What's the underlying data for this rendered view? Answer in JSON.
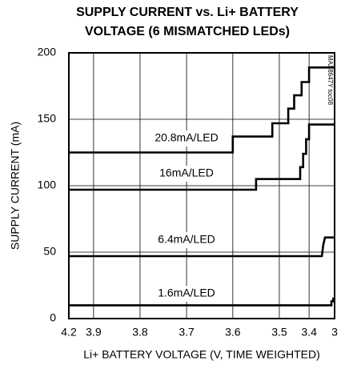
{
  "chart_data": {
    "type": "line",
    "title": [
      "SUPPLY CURRENT vs. Li+ BATTERY",
      "VOLTAGE (6 MISMATCHED LEDs)"
    ],
    "xlabel": "Li+ BATTERY VOLTAGE (V, TIME WEIGHTED)",
    "ylabel": "SUPPLY CURRENT (mA)",
    "xlim": [
      4.2,
      3.0
    ],
    "xticks": [
      4.2,
      3.9,
      3.8,
      3.7,
      3.6,
      3.5,
      3.4,
      3.0
    ],
    "ylim": [
      0,
      200
    ],
    "yticks": [
      0,
      50,
      100,
      150,
      200
    ],
    "grid": true,
    "watermark": "MAX8647Y toc08",
    "series": [
      {
        "name": "20.8mA/LED",
        "color": "#000000",
        "x": [
          4.2,
          3.6,
          3.6,
          3.515,
          3.515,
          3.47,
          3.47,
          3.45,
          3.45,
          3.425,
          3.425,
          3.4,
          3.4,
          3.0
        ],
        "values": [
          125,
          125,
          137,
          137,
          147,
          147,
          158,
          158,
          168,
          168,
          178,
          178,
          189,
          189
        ]
      },
      {
        "name": "16mA/LED",
        "color": "#000000",
        "x": [
          4.2,
          3.55,
          3.55,
          3.43,
          3.43,
          3.42,
          3.42,
          3.41,
          3.41,
          3.4,
          3.4,
          3.0
        ],
        "values": [
          97,
          97,
          105,
          105,
          114,
          114,
          124,
          124,
          135,
          135,
          146,
          146
        ]
      },
      {
        "name": "6.4mA/LED",
        "color": "#000000",
        "x": [
          4.2,
          3.2,
          3.18,
          3.18,
          3.15,
          3.15,
          3.0
        ],
        "values": [
          47,
          47,
          55,
          55,
          61,
          61,
          61
        ]
      },
      {
        "name": "1.6mA/LED",
        "color": "#000000",
        "x": [
          4.2,
          3.05,
          3.05,
          3.02,
          3.02,
          3.0
        ],
        "values": [
          10,
          10,
          13,
          13,
          15,
          15
        ]
      }
    ]
  }
}
